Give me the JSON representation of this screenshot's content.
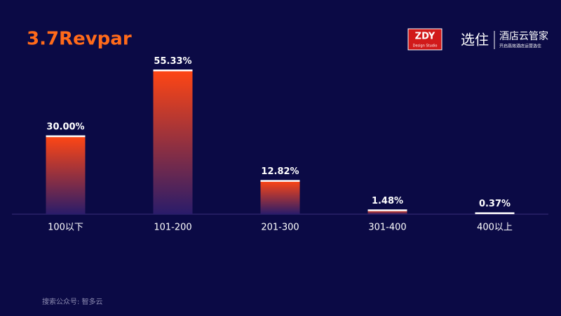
{
  "chart_data": {
    "type": "bar",
    "title": "3.7Revpar",
    "categories": [
      "100以下",
      "101-200",
      "201-300",
      "301-400",
      "400以上"
    ],
    "values": [
      30.0,
      55.33,
      12.82,
      1.48,
      0.37
    ],
    "value_labels": [
      "30.00%",
      "55.33%",
      "12.82%",
      "1.48%",
      "0.37%"
    ],
    "color": "#ff4614",
    "ylim": [
      0,
      60
    ]
  },
  "logos": {
    "zdy": "ZDY",
    "zdy_sub": "Design Studio",
    "brand": "选住",
    "brand_name": "酒店云管家",
    "brand_slogan": "开启高效酒店运营选住"
  },
  "footer": "搜索公众号:  智多云"
}
